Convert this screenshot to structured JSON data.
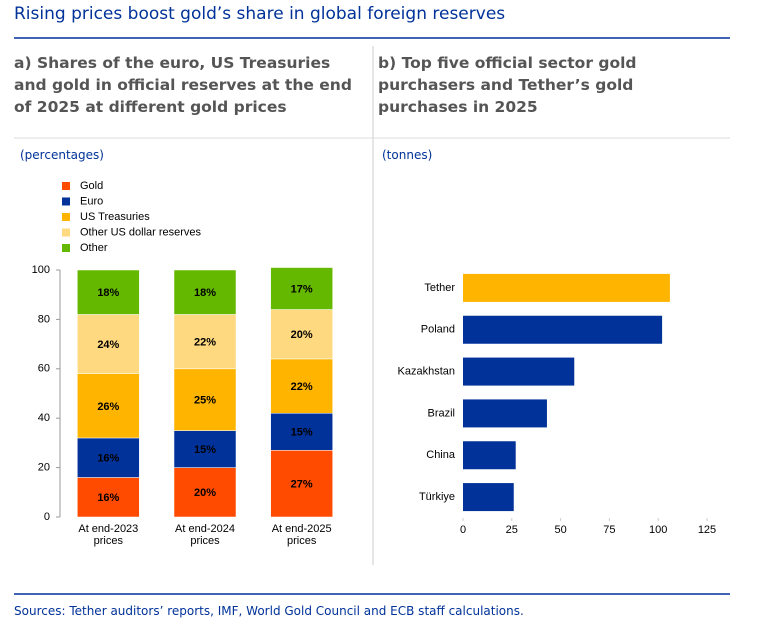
{
  "title": "Rising prices boost gold’s share in global foreign reserves",
  "source": "Sources: Tether auditors’ reports, IMF, World Gold Council and ECB staff calculations.",
  "chart_data": [
    {
      "type": "bar",
      "stacked": true,
      "title": "a) Shares of the euro, US Treasuries and gold in official reserves at the end of 2025 at different gold prices",
      "unit": "(percentages)",
      "categories": [
        "At end-2023 prices",
        "At end-2024 prices",
        "At end-2025 prices"
      ],
      "series": [
        {
          "name": "Gold",
          "color": "#ff4b00",
          "values": [
            16,
            20,
            27
          ],
          "value_labels": [
            "16%",
            "20%",
            "27%"
          ]
        },
        {
          "name": "Euro",
          "color": "#003299",
          "values": [
            16,
            15,
            15
          ],
          "value_labels": [
            "16%",
            "15%",
            "15%"
          ]
        },
        {
          "name": "US Treasuries",
          "color": "#ffb400",
          "values": [
            26,
            25,
            22
          ],
          "value_labels": [
            "26%",
            "25%",
            "22%"
          ]
        },
        {
          "name": "Other US dollar reserves",
          "color": "#ffd97f",
          "values": [
            24,
            22,
            20
          ],
          "value_labels": [
            "24%",
            "22%",
            "20%"
          ]
        },
        {
          "name": "Other",
          "color": "#65b800",
          "values": [
            18,
            18,
            17
          ],
          "value_labels": [
            "18%",
            "18%",
            "17%"
          ]
        }
      ],
      "ylim": [
        0,
        100
      ],
      "yticks": [
        0,
        20,
        40,
        60,
        80,
        100
      ]
    },
    {
      "type": "barh",
      "title": "b) Top five official sector gold purchasers and Tether’s gold purchases in 2025",
      "unit": "(tonnes)",
      "categories": [
        "Tether",
        "Poland",
        "Kazakhstan",
        "Brazil",
        "China",
        "Türkiye"
      ],
      "values": [
        106,
        102,
        57,
        43,
        27,
        26
      ],
      "colors": [
        "#ffb400",
        "#003299",
        "#003299",
        "#003299",
        "#003299",
        "#003299"
      ],
      "xlim": [
        0,
        125
      ],
      "xticks": [
        0,
        25,
        50,
        75,
        100,
        125
      ]
    }
  ]
}
